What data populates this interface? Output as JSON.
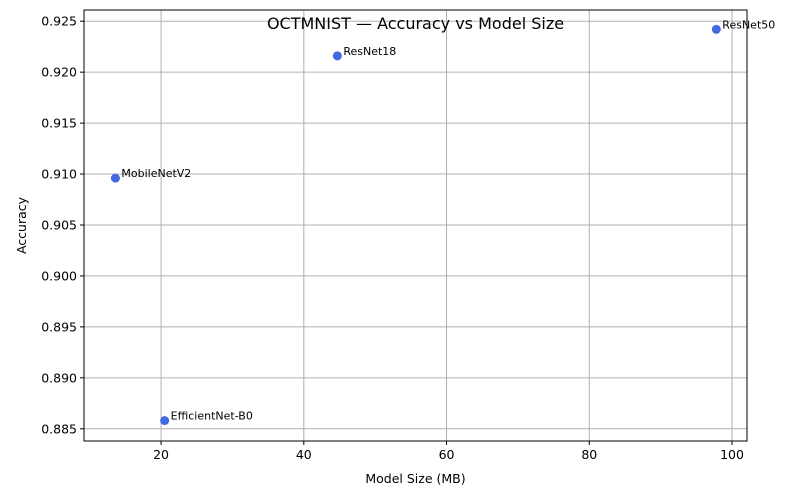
{
  "chart_data": {
    "type": "scatter",
    "title": "OCTMNIST — Accuracy vs Model Size",
    "xlabel": "Model Size (MB)",
    "ylabel": "Accuracy",
    "xlim": [
      9.2,
      102.1
    ],
    "ylim": [
      0.8838,
      0.9261
    ],
    "xticks": [
      20,
      40,
      60,
      80,
      100
    ],
    "yticks": [
      0.885,
      0.89,
      0.895,
      0.9,
      0.905,
      0.91,
      0.915,
      0.92,
      0.925
    ],
    "grid": true,
    "point_color": "#4169e1",
    "points": [
      {
        "label": "MobileNetV2",
        "x": 13.6,
        "y": 0.9096
      },
      {
        "label": "EfficientNet-B0",
        "x": 20.5,
        "y": 0.8858
      },
      {
        "label": "ResNet18",
        "x": 44.7,
        "y": 0.9216
      },
      {
        "label": "ResNet50",
        "x": 97.8,
        "y": 0.9242
      }
    ]
  }
}
